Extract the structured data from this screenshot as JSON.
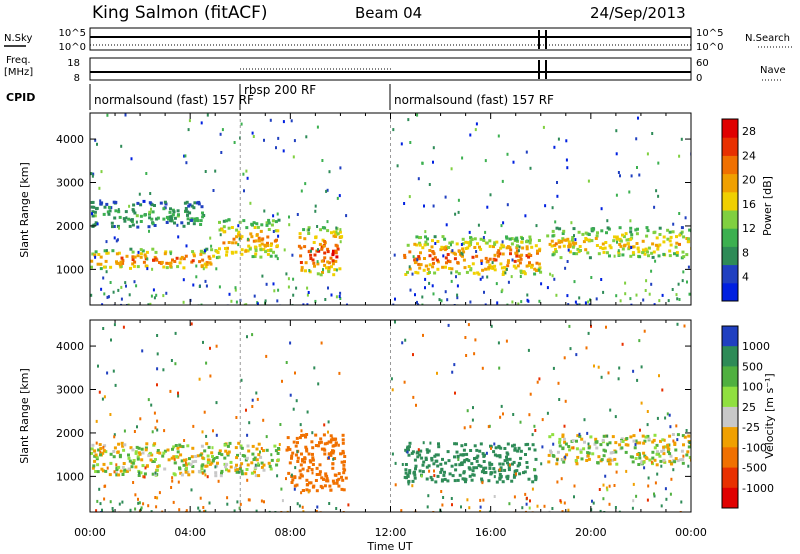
{
  "header": {
    "station": "King Salmon (fitACF)",
    "beam": "Beam 04",
    "date": "24/Sep/2013"
  },
  "ancillary": {
    "nsky_label": "N.Sky",
    "nsky_ticks": [
      "10^5",
      "10^0"
    ],
    "nsearch_label": "N.Search",
    "nsearch_ticks": [
      "10^5",
      "10^0"
    ],
    "freq_label_line1": "Freq.",
    "freq_label_line2": "[MHz]",
    "freq_ticks": [
      "18",
      "8"
    ],
    "nave_label": "Nave",
    "nave_ticks": [
      "60",
      "0"
    ],
    "cpid_label": "CPID",
    "cpid_segments": [
      {
        "label": "normalsound (fast) 157 RF",
        "start_hour": 0,
        "end_hour": 6
      },
      {
        "label": "rbsp 200 RF",
        "start_hour": 6,
        "end_hour": 12
      },
      {
        "label": "normalsound (fast) 157 RF",
        "start_hour": 12,
        "end_hour": 24
      }
    ]
  },
  "chart_data": [
    {
      "type": "heatmap",
      "parameter": "Power",
      "ylabel": "Slant Range [km]",
      "ylim": [
        180,
        4600
      ],
      "y_ticks": [
        1000,
        2000,
        3000,
        4000
      ],
      "x_ticks": [
        "00:00",
        "04:00",
        "08:00",
        "12:00",
        "16:00",
        "20:00",
        "00:00"
      ],
      "xlim_hours": [
        0,
        24
      ],
      "colorbar": {
        "label": "Power [dB]",
        "ticks": [
          4,
          8,
          12,
          16,
          20,
          24,
          28
        ],
        "range": [
          0,
          30
        ],
        "colors": [
          "#0020e0",
          "#2040c0",
          "#2e8b57",
          "#3cb050",
          "#80d040",
          "#f0d000",
          "#f0a000",
          "#f07000",
          "#e83000",
          "#e00000"
        ]
      },
      "features": [
        {
          "name": "main band",
          "hours": [
            0,
            5
          ],
          "range_km": [
            1050,
            1500
          ],
          "db": 20
        },
        {
          "name": "main band",
          "hours": [
            5,
            7.5
          ],
          "range_km": [
            1300,
            2200
          ],
          "db": 18
        },
        {
          "name": "upper band",
          "hours": [
            0,
            4.5
          ],
          "range_km": [
            2000,
            2600
          ],
          "db": 9
        },
        {
          "name": "patch",
          "hours": [
            8.3,
            10
          ],
          "range_km": [
            900,
            2000
          ],
          "db": 22
        },
        {
          "name": "afternoon band",
          "hours": [
            12.5,
            18
          ],
          "range_km": [
            900,
            1800
          ],
          "db": 20
        },
        {
          "name": "evening band",
          "hours": [
            18.2,
            24
          ],
          "range_km": [
            1300,
            2000
          ],
          "db": 16
        }
      ]
    },
    {
      "type": "heatmap",
      "parameter": "Velocity",
      "ylabel": "Slant Range [km]",
      "ylim": [
        180,
        4600
      ],
      "y_ticks": [
        1000,
        2000,
        3000,
        4000
      ],
      "x_ticks": [
        "00:00",
        "04:00",
        "08:00",
        "12:00",
        "16:00",
        "20:00",
        "00:00"
      ],
      "xlabel": "Time UT",
      "xlim_hours": [
        0,
        24
      ],
      "colorbar": {
        "label": "Velocity [m s⁻¹]",
        "ticks": [
          1000,
          500,
          100,
          25,
          -25,
          -100,
          -500,
          -1000
        ],
        "colors": [
          "#2040c0",
          "#2e8b57",
          "#50b040",
          "#90e040",
          "#c8c8c8",
          "#f0a000",
          "#f07000",
          "#e83000",
          "#e00000"
        ]
      },
      "features": [
        {
          "name": "ground scatter",
          "hours": [
            0,
            7.5
          ],
          "range_km": [
            1050,
            1800
          ],
          "velocity": 0
        },
        {
          "name": "patch",
          "hours": [
            7.8,
            10.2
          ],
          "range_km": [
            700,
            2000
          ],
          "velocity": -300
        },
        {
          "name": "afternoon band",
          "hours": [
            12.5,
            17.8
          ],
          "range_km": [
            900,
            1800
          ],
          "velocity": 300
        },
        {
          "name": "evening band",
          "hours": [
            18.2,
            24
          ],
          "range_km": [
            1300,
            2000
          ],
          "velocity": 0
        }
      ]
    }
  ]
}
